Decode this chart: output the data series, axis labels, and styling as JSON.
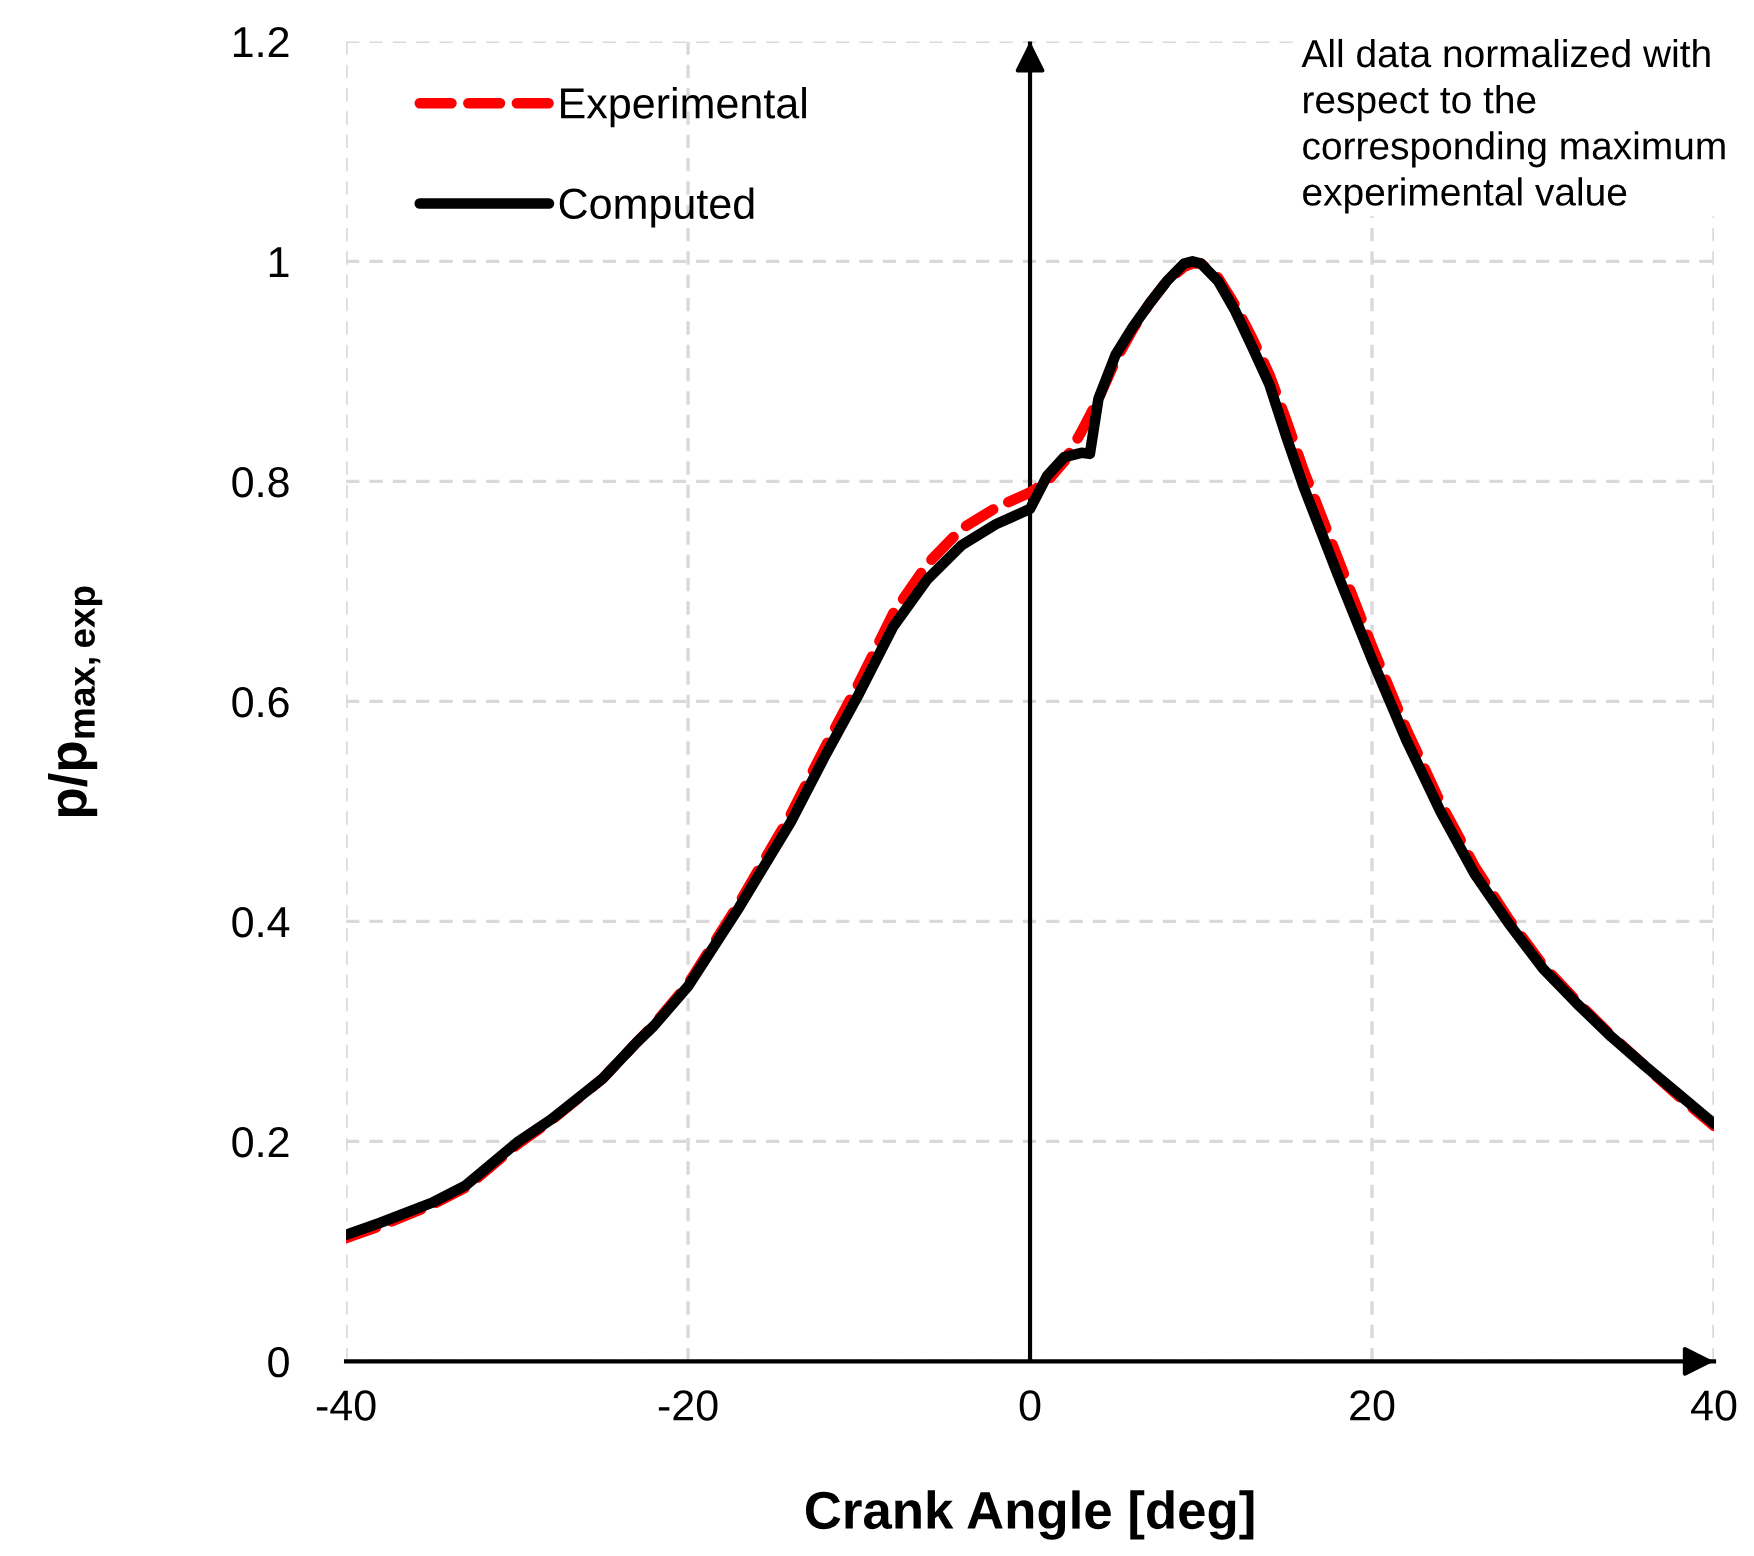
{
  "chart_data": {
    "type": "line",
    "xlabel": "Crank Angle [deg]",
    "ylabel": "p/p$_{max,exp}$",
    "annotations": [
      "All data normalized with respect to the corresponding maximum experimental value"
    ],
    "x": [
      -40,
      -38,
      -35,
      -33,
      -30,
      -28,
      -25,
      -23,
      -22,
      -20,
      -17,
      -14,
      -12,
      -10,
      -8,
      -6,
      -4,
      -2,
      -1,
      0,
      1,
      2,
      3,
      3.5,
      4,
      5,
      6,
      7,
      8,
      9,
      9.5,
      10,
      11,
      12,
      13,
      14,
      15,
      16,
      17,
      18,
      20,
      22,
      24,
      26,
      28,
      30,
      32,
      34,
      36,
      38,
      40
    ],
    "series": [
      {
        "name": "Experimental",
        "color": "#ff0000",
        "line_style": "dashed",
        "values": [
          0.112,
          0.123,
          0.142,
          0.158,
          0.197,
          0.219,
          0.257,
          0.29,
          0.306,
          0.343,
          0.417,
          0.497,
          0.558,
          0.617,
          0.68,
          0.725,
          0.757,
          0.776,
          0.783,
          0.79,
          0.8,
          0.818,
          0.845,
          0.86,
          0.875,
          0.91,
          0.938,
          0.962,
          0.982,
          0.995,
          0.998,
          0.998,
          0.985,
          0.96,
          0.93,
          0.897,
          0.855,
          0.81,
          0.77,
          0.73,
          0.65,
          0.575,
          0.508,
          0.45,
          0.402,
          0.36,
          0.327,
          0.296,
          0.268,
          0.24,
          0.214
        ]
      },
      {
        "name": "Computed",
        "color": "#000000",
        "line_style": "solid",
        "values": [
          0.115,
          0.126,
          0.144,
          0.16,
          0.199,
          0.22,
          0.257,
          0.29,
          0.305,
          0.341,
          0.413,
          0.49,
          0.55,
          0.607,
          0.668,
          0.711,
          0.742,
          0.761,
          0.768,
          0.775,
          0.805,
          0.822,
          0.826,
          0.825,
          0.875,
          0.915,
          0.94,
          0.962,
          0.982,
          0.998,
          1.0,
          0.998,
          0.982,
          0.955,
          0.922,
          0.888,
          0.84,
          0.795,
          0.755,
          0.715,
          0.638,
          0.565,
          0.5,
          0.443,
          0.398,
          0.357,
          0.325,
          0.295,
          0.268,
          0.242,
          0.216
        ]
      }
    ],
    "xlim": [
      -40,
      40
    ],
    "xticks": [
      -40,
      -20,
      0,
      20,
      40
    ],
    "ylim": [
      0,
      1.2
    ],
    "yticks": [
      0,
      0.2,
      0.4,
      0.6,
      0.8,
      1,
      1.2
    ],
    "ref_lines": [
      {
        "axis": "x",
        "value": 0,
        "color": "#000000"
      }
    ],
    "grid": true,
    "legend": "top left",
    "marker": "none"
  }
}
